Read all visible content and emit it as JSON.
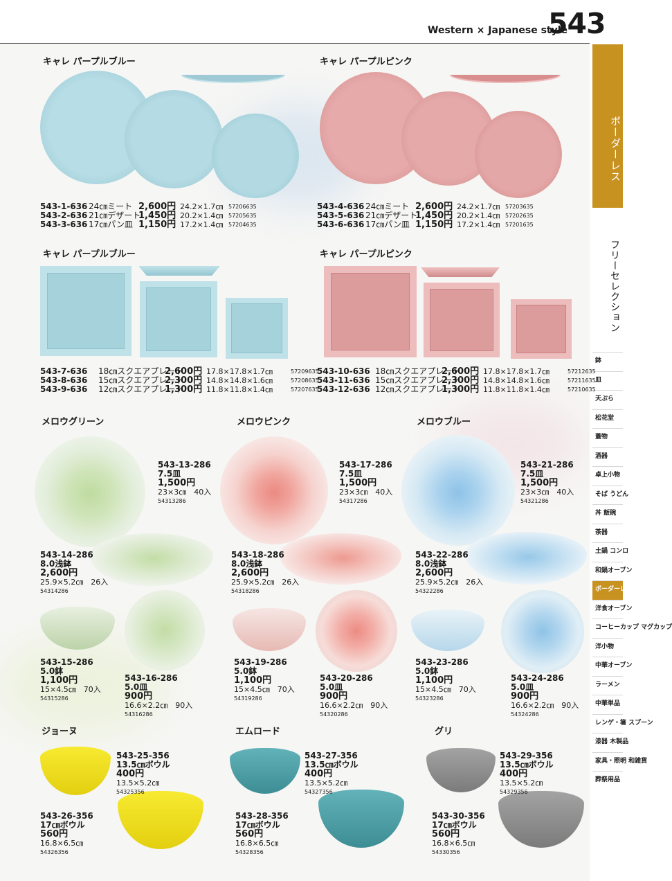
{
  "header": {
    "title": "Western × Japanese style",
    "page_number": "543"
  },
  "sidebar": {
    "active_label": "ボーダーレス",
    "alt_label": "フリーセレクション",
    "tabs": [
      "鉢",
      "皿",
      "天ぷら",
      "松花堂",
      "蓋物",
      "酒器",
      "卓上小物",
      "そば うどん",
      "丼 飯碗",
      "茶器",
      "土鍋 コンロ",
      "和鍋オーブン",
      "ボーダーレス",
      "洋食オーブン",
      "コーヒーカップ マグカップ",
      "洋小物",
      "中華オーブン",
      "ラーメン",
      "中華単品",
      "レンゲ・箸 スプーン",
      "漆器 木製品",
      "家具・照明 和雑貨",
      "葬祭用品"
    ],
    "active_tab_index": 12
  },
  "sections": {
    "s1": "キャレ パープルブルー",
    "s2": "キャレ パープルピンク",
    "s3": "キャレ パープルブルー",
    "s4": "キャレ パープルピンク",
    "s5": "メロウグリーン",
    "s6": "メロウピンク",
    "s7": "メロウブルー",
    "s8": "ジョーヌ",
    "s9": "エムロード",
    "s10": "グリ"
  },
  "lists": {
    "blue_round": [
      {
        "code": "543-1-636",
        "name": "24㎝ミート",
        "price": "2,600円",
        "size": "24.2×1.7㎝",
        "jan": "57206635"
      },
      {
        "code": "543-2-636",
        "name": "21㎝デザート",
        "price": "1,450円",
        "size": "20.2×1.4㎝",
        "jan": "57205635"
      },
      {
        "code": "543-3-636",
        "name": "17㎝パン皿",
        "price": "1,150円",
        "size": "17.2×1.4㎝",
        "jan": "57204635"
      }
    ],
    "pink_round": [
      {
        "code": "543-4-636",
        "name": "24㎝ミート",
        "price": "2,600円",
        "size": "24.2×1.7㎝",
        "jan": "57203635"
      },
      {
        "code": "543-5-636",
        "name": "21㎝デザート",
        "price": "1,450円",
        "size": "20.2×1.4㎝",
        "jan": "57202635"
      },
      {
        "code": "543-6-636",
        "name": "17㎝パン皿",
        "price": "1,150円",
        "size": "17.2×1.4㎝",
        "jan": "57201635"
      }
    ],
    "blue_square": [
      {
        "code": "543-7-636",
        "name": "18㎝スクエアプレート",
        "price": "2,600円",
        "size": "17.8×17.8×1.7㎝",
        "jan": "57209635"
      },
      {
        "code": "543-8-636",
        "name": "15㎝スクエアプレート",
        "price": "2,300円",
        "size": "14.8×14.8×1.6㎝",
        "jan": "57208635"
      },
      {
        "code": "543-9-636",
        "name": "12㎝スクエアプレート",
        "price": "1,300円",
        "size": "11.8×11.8×1.4㎝",
        "jan": "57207635"
      }
    ],
    "pink_square": [
      {
        "code": "543-10-636",
        "name": "18㎝スクエアプレート",
        "price": "2,600円",
        "size": "17.8×17.8×1.7㎝",
        "jan": "57212635"
      },
      {
        "code": "543-11-636",
        "name": "15㎝スクエアプレート",
        "price": "2,300円",
        "size": "14.8×14.8×1.6㎝",
        "jan": "57211635"
      },
      {
        "code": "543-12-636",
        "name": "12㎝スクエアプレート",
        "price": "1,300円",
        "size": "11.8×11.8×1.4㎝",
        "jan": "57210635"
      }
    ]
  },
  "mellow": {
    "i13": {
      "code": "543-13-286",
      "name": "7.5皿",
      "price": "1,500円",
      "size": "23×3㎝　40入",
      "jan": "54313286"
    },
    "i14": {
      "code": "543-14-286",
      "name": "8.0浅鉢",
      "price": "2,600円",
      "size": "25.9×5.2㎝　26入",
      "jan": "54314286"
    },
    "i15": {
      "code": "543-15-286",
      "name": "5.0鉢",
      "price": "1,100円",
      "size": "15×4.5㎝　70入",
      "jan": "54315286"
    },
    "i16": {
      "code": "543-16-286",
      "name": "5.0皿",
      "price": "900円",
      "size": "16.6×2.2㎝　90入",
      "jan": "54316286"
    },
    "i17": {
      "code": "543-17-286",
      "name": "7.5皿",
      "price": "1,500円",
      "size": "23×3㎝　40入",
      "jan": "54317286"
    },
    "i18": {
      "code": "543-18-286",
      "name": "8.0浅鉢",
      "price": "2,600円",
      "size": "25.9×5.2㎝　26入",
      "jan": "54318286"
    },
    "i19": {
      "code": "543-19-286",
      "name": "5.0鉢",
      "price": "1,100円",
      "size": "15×4.5㎝　70入",
      "jan": "54319286"
    },
    "i20": {
      "code": "543-20-286",
      "name": "5.0皿",
      "price": "900円",
      "size": "16.6×2.2㎝　90入",
      "jan": "54320286"
    },
    "i21": {
      "code": "543-21-286",
      "name": "7.5皿",
      "price": "1,500円",
      "size": "23×3㎝　40入",
      "jan": "54321286"
    },
    "i22": {
      "code": "543-22-286",
      "name": "8.0浅鉢",
      "price": "2,600円",
      "size": "25.9×5.2㎝　26入",
      "jan": "54322286"
    },
    "i23": {
      "code": "543-23-286",
      "name": "5.0鉢",
      "price": "1,100円",
      "size": "15×4.5㎝　70入",
      "jan": "54323286"
    },
    "i24": {
      "code": "543-24-286",
      "name": "5.0皿",
      "price": "900円",
      "size": "16.6×2.2㎝　90入",
      "jan": "54324286"
    }
  },
  "bowls": {
    "i25": {
      "code": "543-25-356",
      "name": "13.5㎝ボウル",
      "price": "400円",
      "size": "13.5×5.2㎝",
      "jan": "54325356"
    },
    "i26": {
      "code": "543-26-356",
      "name": "17㎝ボウル",
      "price": "560円",
      "size": "16.8×6.5㎝",
      "jan": "54326356"
    },
    "i27": {
      "code": "543-27-356",
      "name": "13.5㎝ボウル",
      "price": "400円",
      "size": "13.5×5.2㎝",
      "jan": "54327356"
    },
    "i28": {
      "code": "543-28-356",
      "name": "17㎝ボウル",
      "price": "560円",
      "size": "16.8×6.5㎝",
      "jan": "54328356"
    },
    "i29": {
      "code": "543-29-356",
      "name": "13.5㎝ボウル",
      "price": "400円",
      "size": "13.5×5.2㎝",
      "jan": "54329356"
    },
    "i30": {
      "code": "543-30-356",
      "name": "17㎝ボウル",
      "price": "560円",
      "size": "16.8×6.5㎝",
      "jan": "54330356"
    }
  },
  "colors": {
    "accent": "#c89220",
    "purple_blue": "#a9d5df",
    "purple_pink": "#e1a3a3",
    "yellow": "#f0df1c",
    "teal": "#4fa1a8",
    "grey": "#8f8f8f"
  }
}
